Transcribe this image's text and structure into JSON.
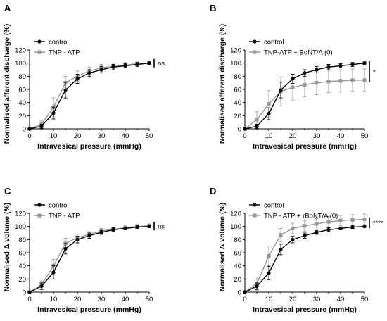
{
  "chart_data": [
    {
      "panel": "A",
      "type": "line",
      "xlabel": "Intravesical pressure (mmHg)",
      "ylabel": "Normalised afferent discharge (%)",
      "xlim": [
        0,
        50
      ],
      "ylim": [
        0,
        120
      ],
      "x_ticks": [
        "0",
        "10",
        "20",
        "30",
        "40",
        "50"
      ],
      "y_ticks": [
        "0",
        "20",
        "40",
        "60",
        "80",
        "100",
        "120"
      ],
      "legend_position": "top-left",
      "significance": "ns",
      "x": [
        0,
        5,
        10,
        15,
        20,
        25,
        30,
        35,
        40,
        45,
        50
      ],
      "series": [
        {
          "name": "control",
          "color": "#000000",
          "marker": "circle",
          "values": [
            0,
            4,
            24,
            59,
            76,
            85,
            90,
            94,
            96,
            98,
            100
          ],
          "errors": [
            0,
            3,
            9,
            12,
            7,
            5,
            5,
            4,
            3,
            3,
            2
          ]
        },
        {
          "name": "TNP - ATP",
          "color": "#999999",
          "marker": "square",
          "values": [
            0,
            7,
            33,
            70,
            80,
            88,
            93,
            95,
            97,
            99,
            100
          ],
          "errors": [
            0,
            5,
            14,
            10,
            8,
            6,
            5,
            5,
            4,
            3,
            3
          ]
        }
      ]
    },
    {
      "panel": "B",
      "type": "line",
      "xlabel": "Intravesical pressure (mmHg)",
      "ylabel": "Normalised afferent discharge (%)",
      "xlim": [
        0,
        50
      ],
      "ylim": [
        0,
        120
      ],
      "x_ticks": [
        "0",
        "10",
        "20",
        "30",
        "40",
        "50"
      ],
      "y_ticks": [
        "0",
        "20",
        "40",
        "60",
        "80",
        "100",
        "120"
      ],
      "legend_position": "top-left",
      "significance": "*",
      "x": [
        0,
        5,
        10,
        15,
        20,
        25,
        30,
        35,
        40,
        45,
        50
      ],
      "series": [
        {
          "name": "control",
          "color": "#000000",
          "marker": "circle",
          "values": [
            0,
            4,
            23,
            59,
            76,
            85,
            90,
            94,
            96,
            98,
            100
          ],
          "errors": [
            0,
            3,
            9,
            12,
            7,
            5,
            5,
            4,
            3,
            3,
            2
          ]
        },
        {
          "name": "TNP-ATP + BoNT/A (0)",
          "color": "#999999",
          "marker": "square",
          "values": [
            0,
            14,
            38,
            57,
            63,
            67,
            70,
            72,
            73,
            74,
            74
          ],
          "errors": [
            0,
            12,
            20,
            22,
            20,
            18,
            18,
            17,
            17,
            17,
            17
          ]
        }
      ]
    },
    {
      "panel": "C",
      "type": "line",
      "xlabel": "Intravesical pressure (mmHg)",
      "ylabel": "Normalised Δ volume (%)",
      "xlim": [
        0,
        50
      ],
      "ylim": [
        0,
        120
      ],
      "x_ticks": [
        "0",
        "10",
        "20",
        "30",
        "40",
        "50"
      ],
      "y_ticks": [
        "0",
        "20",
        "40",
        "60",
        "80",
        "100",
        "120"
      ],
      "legend_position": "top-left",
      "significance": "ns",
      "x": [
        0,
        5,
        10,
        15,
        20,
        25,
        30,
        35,
        40,
        45,
        50
      ],
      "series": [
        {
          "name": "control",
          "color": "#000000",
          "marker": "circle",
          "values": [
            0,
            9,
            30,
            66,
            80,
            86,
            91,
            95,
            97,
            99,
            100
          ],
          "errors": [
            0,
            5,
            10,
            8,
            5,
            4,
            3,
            3,
            2,
            2,
            1
          ]
        },
        {
          "name": "TNP - ATP",
          "color": "#999999",
          "marker": "square",
          "values": [
            0,
            11,
            40,
            74,
            83,
            88,
            93,
            96,
            98,
            100,
            101
          ],
          "errors": [
            0,
            6,
            10,
            8,
            5,
            4,
            4,
            3,
            3,
            3,
            3
          ]
        }
      ]
    },
    {
      "panel": "D",
      "type": "line",
      "xlabel": "Intravesical pressure (mmHg)",
      "ylabel": "Normalised Δ volume (%)",
      "xlim": [
        0,
        50
      ],
      "ylim": [
        0,
        120
      ],
      "x_ticks": [
        "0",
        "10",
        "20",
        "30",
        "40",
        "50"
      ],
      "y_ticks": [
        "0",
        "20",
        "40",
        "60",
        "80",
        "100",
        "120"
      ],
      "legend_position": "top-left",
      "significance": "****",
      "x": [
        0,
        5,
        10,
        15,
        20,
        25,
        30,
        35,
        40,
        45,
        50
      ],
      "series": [
        {
          "name": "control",
          "color": "#000000",
          "marker": "circle",
          "values": [
            0,
            9,
            29,
            65,
            80,
            86,
            91,
            95,
            97,
            99,
            100
          ],
          "errors": [
            0,
            5,
            10,
            8,
            5,
            4,
            3,
            3,
            2,
            2,
            1
          ]
        },
        {
          "name": "TNP - ATP + rBoNT/A (0)",
          "color": "#999999",
          "marker": "square",
          "values": [
            0,
            13,
            55,
            87,
            97,
            101,
            104,
            107,
            109,
            110,
            111
          ],
          "errors": [
            0,
            10,
            15,
            10,
            8,
            8,
            8,
            8,
            8,
            8,
            8
          ]
        }
      ]
    }
  ]
}
